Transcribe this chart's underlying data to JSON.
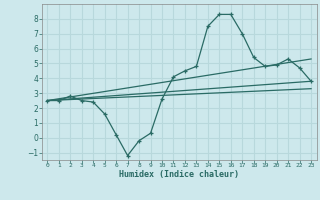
{
  "xlabel": "Humidex (Indice chaleur)",
  "xlim": [
    -0.5,
    23.5
  ],
  "ylim": [
    -1.5,
    9.0
  ],
  "xticks": [
    0,
    1,
    2,
    3,
    4,
    5,
    6,
    7,
    8,
    9,
    10,
    11,
    12,
    13,
    14,
    15,
    16,
    17,
    18,
    19,
    20,
    21,
    22,
    23
  ],
  "yticks": [
    -1,
    0,
    1,
    2,
    3,
    4,
    5,
    6,
    7,
    8
  ],
  "bg_color": "#cde8ec",
  "grid_color": "#b8d8dc",
  "line_color": "#2a6b65",
  "line1_x": [
    0,
    1,
    2,
    3,
    4,
    5,
    6,
    7,
    8,
    9,
    10,
    11,
    12,
    13,
    14,
    15,
    16,
    17,
    18,
    19,
    20,
    21,
    22,
    23
  ],
  "line1_y": [
    2.5,
    2.5,
    2.8,
    2.5,
    2.4,
    1.6,
    0.2,
    -1.2,
    -0.2,
    0.3,
    2.6,
    4.1,
    4.5,
    4.8,
    7.5,
    8.3,
    8.3,
    7.0,
    5.4,
    4.8,
    4.9,
    5.3,
    4.7,
    3.8
  ],
  "line2_x": [
    0,
    23
  ],
  "line2_y": [
    2.5,
    5.3
  ],
  "line3_x": [
    0,
    23
  ],
  "line3_y": [
    2.5,
    3.8
  ],
  "line4_x": [
    0,
    23
  ],
  "line4_y": [
    2.5,
    3.3
  ]
}
